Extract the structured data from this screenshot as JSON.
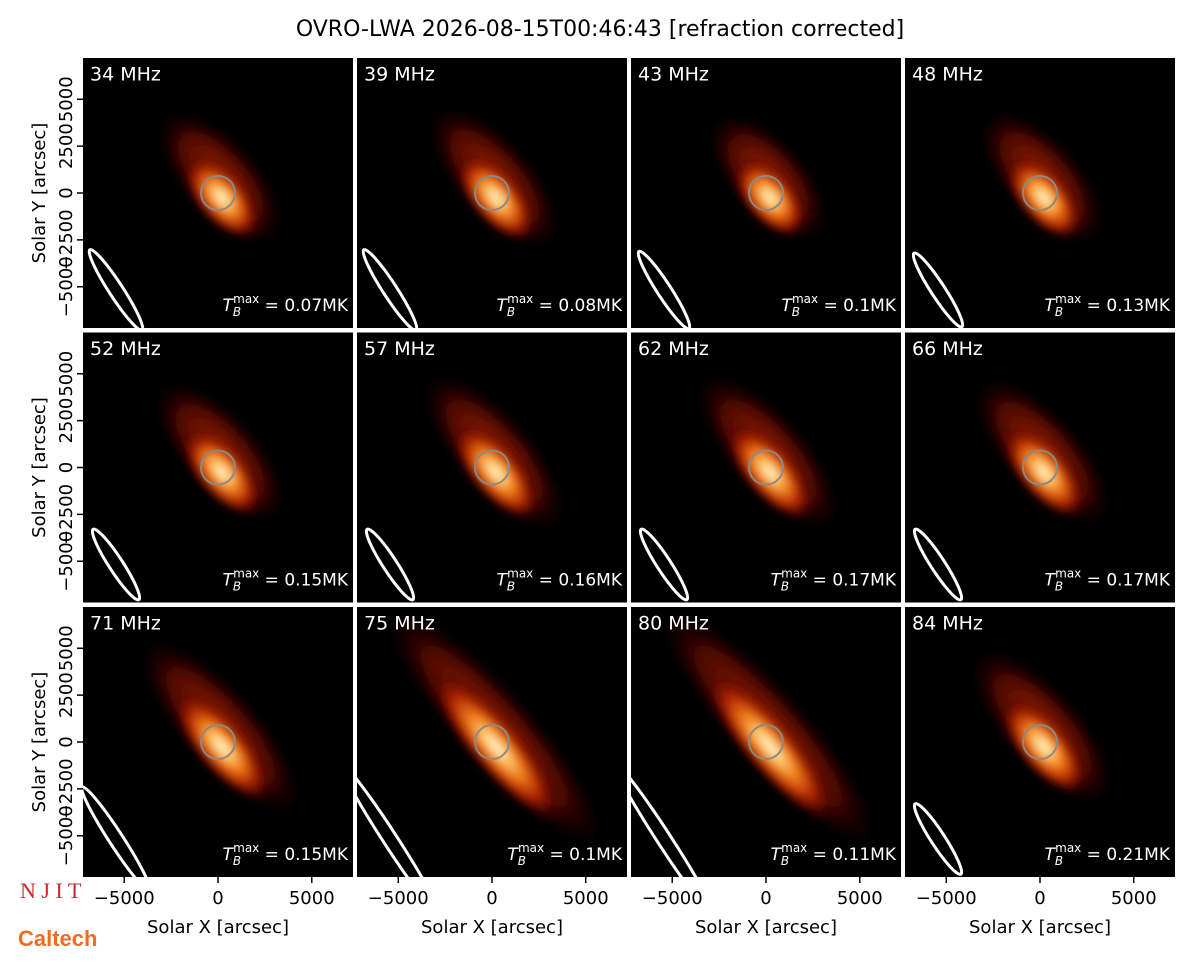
{
  "figure_title": "OVRO-LWA 2026-08-15T00:46:43 [refraction corrected]",
  "logos": [
    "N J I T",
    "Caltech"
  ],
  "chart_data": [
    {
      "type": "image",
      "title": "34 MHz",
      "annotation": "T_B^max = 0.07MK",
      "xlim": [
        -7200,
        7200
      ],
      "ylim": [
        -7200,
        7200
      ],
      "ylabel": "Solar Y [arcsec]",
      "yticks": [
        {
          "value": -5000,
          "label": "−5000"
        },
        {
          "value": -2500,
          "label": "−2500"
        },
        0,
        2500,
        5000
      ]
    },
    {
      "type": "image",
      "title": "39 MHz",
      "annotation": "T_B^max = 0.08MK",
      "xlim": [
        -7200,
        7200
      ],
      "ylim": [
        -7200,
        7200
      ]
    },
    {
      "type": "image",
      "title": "43 MHz",
      "annotation": "T_B^max = 0.1MK",
      "xlim": [
        -7200,
        7200
      ],
      "ylim": [
        -7200,
        7200
      ]
    },
    {
      "type": "image",
      "title": "48 MHz",
      "annotation": "T_B^max = 0.13MK",
      "xlim": [
        -7200,
        7200
      ],
      "ylim": [
        -7200,
        7200
      ]
    },
    {
      "type": "image",
      "title": "52 MHz",
      "annotation": "T_B^max = 0.15MK",
      "xlim": [
        -7200,
        7200
      ],
      "ylim": [
        -7200,
        7200
      ],
      "ylabel": "Solar Y [arcsec]",
      "yticks": [
        {
          "value": -5000,
          "label": "−5000"
        },
        {
          "value": -2500,
          "label": "−2500"
        },
        0,
        2500,
        5000
      ]
    },
    {
      "type": "image",
      "title": "57 MHz",
      "annotation": "T_B^max = 0.16MK",
      "xlim": [
        -7200,
        7200
      ],
      "ylim": [
        -7200,
        7200
      ]
    },
    {
      "type": "image",
      "title": "62 MHz",
      "annotation": "T_B^max = 0.17MK",
      "xlim": [
        -7200,
        7200
      ],
      "ylim": [
        -7200,
        7200
      ]
    },
    {
      "type": "image",
      "title": "66 MHz",
      "annotation": "T_B^max = 0.17MK",
      "xlim": [
        -7200,
        7200
      ],
      "ylim": [
        -7200,
        7200
      ]
    },
    {
      "type": "image",
      "title": "71 MHz",
      "annotation": "T_B^max = 0.15MK",
      "xlim": [
        -7200,
        7200
      ],
      "ylim": [
        -7200,
        7200
      ],
      "ylabel": "Solar Y [arcsec]",
      "yticks": [
        {
          "value": -5000,
          "label": "−5000"
        },
        {
          "value": -2500,
          "label": "−2500"
        },
        0,
        2500,
        5000
      ],
      "xlabel": "Solar X [arcsec]",
      "xticks": [
        {
          "value": -5000,
          "label": "−5000"
        },
        0,
        5000
      ]
    },
    {
      "type": "image",
      "title": "75 MHz",
      "annotation": "T_B^max = 0.1MK",
      "xlim": [
        -7200,
        7200
      ],
      "ylim": [
        -7200,
        7200
      ],
      "xlabel": "Solar X [arcsec]",
      "xticks": [
        {
          "value": -5000,
          "label": "−5000"
        },
        0,
        5000
      ]
    },
    {
      "type": "image",
      "title": "80 MHz",
      "annotation": "T_B^max = 0.11MK",
      "xlim": [
        -7200,
        7200
      ],
      "ylim": [
        -7200,
        7200
      ],
      "xlabel": "Solar X [arcsec]",
      "xticks": [
        {
          "value": -5000,
          "label": "−5000"
        },
        0,
        5000
      ]
    },
    {
      "type": "image",
      "title": "84 MHz",
      "annotation": "T_B^max = 0.21MK",
      "xlim": [
        -7200,
        7200
      ],
      "ylim": [
        -7200,
        7200
      ],
      "xlabel": "Solar X [arcsec]",
      "xticks": [
        {
          "value": -5000,
          "label": "−5000"
        },
        0,
        5000
      ]
    }
  ]
}
